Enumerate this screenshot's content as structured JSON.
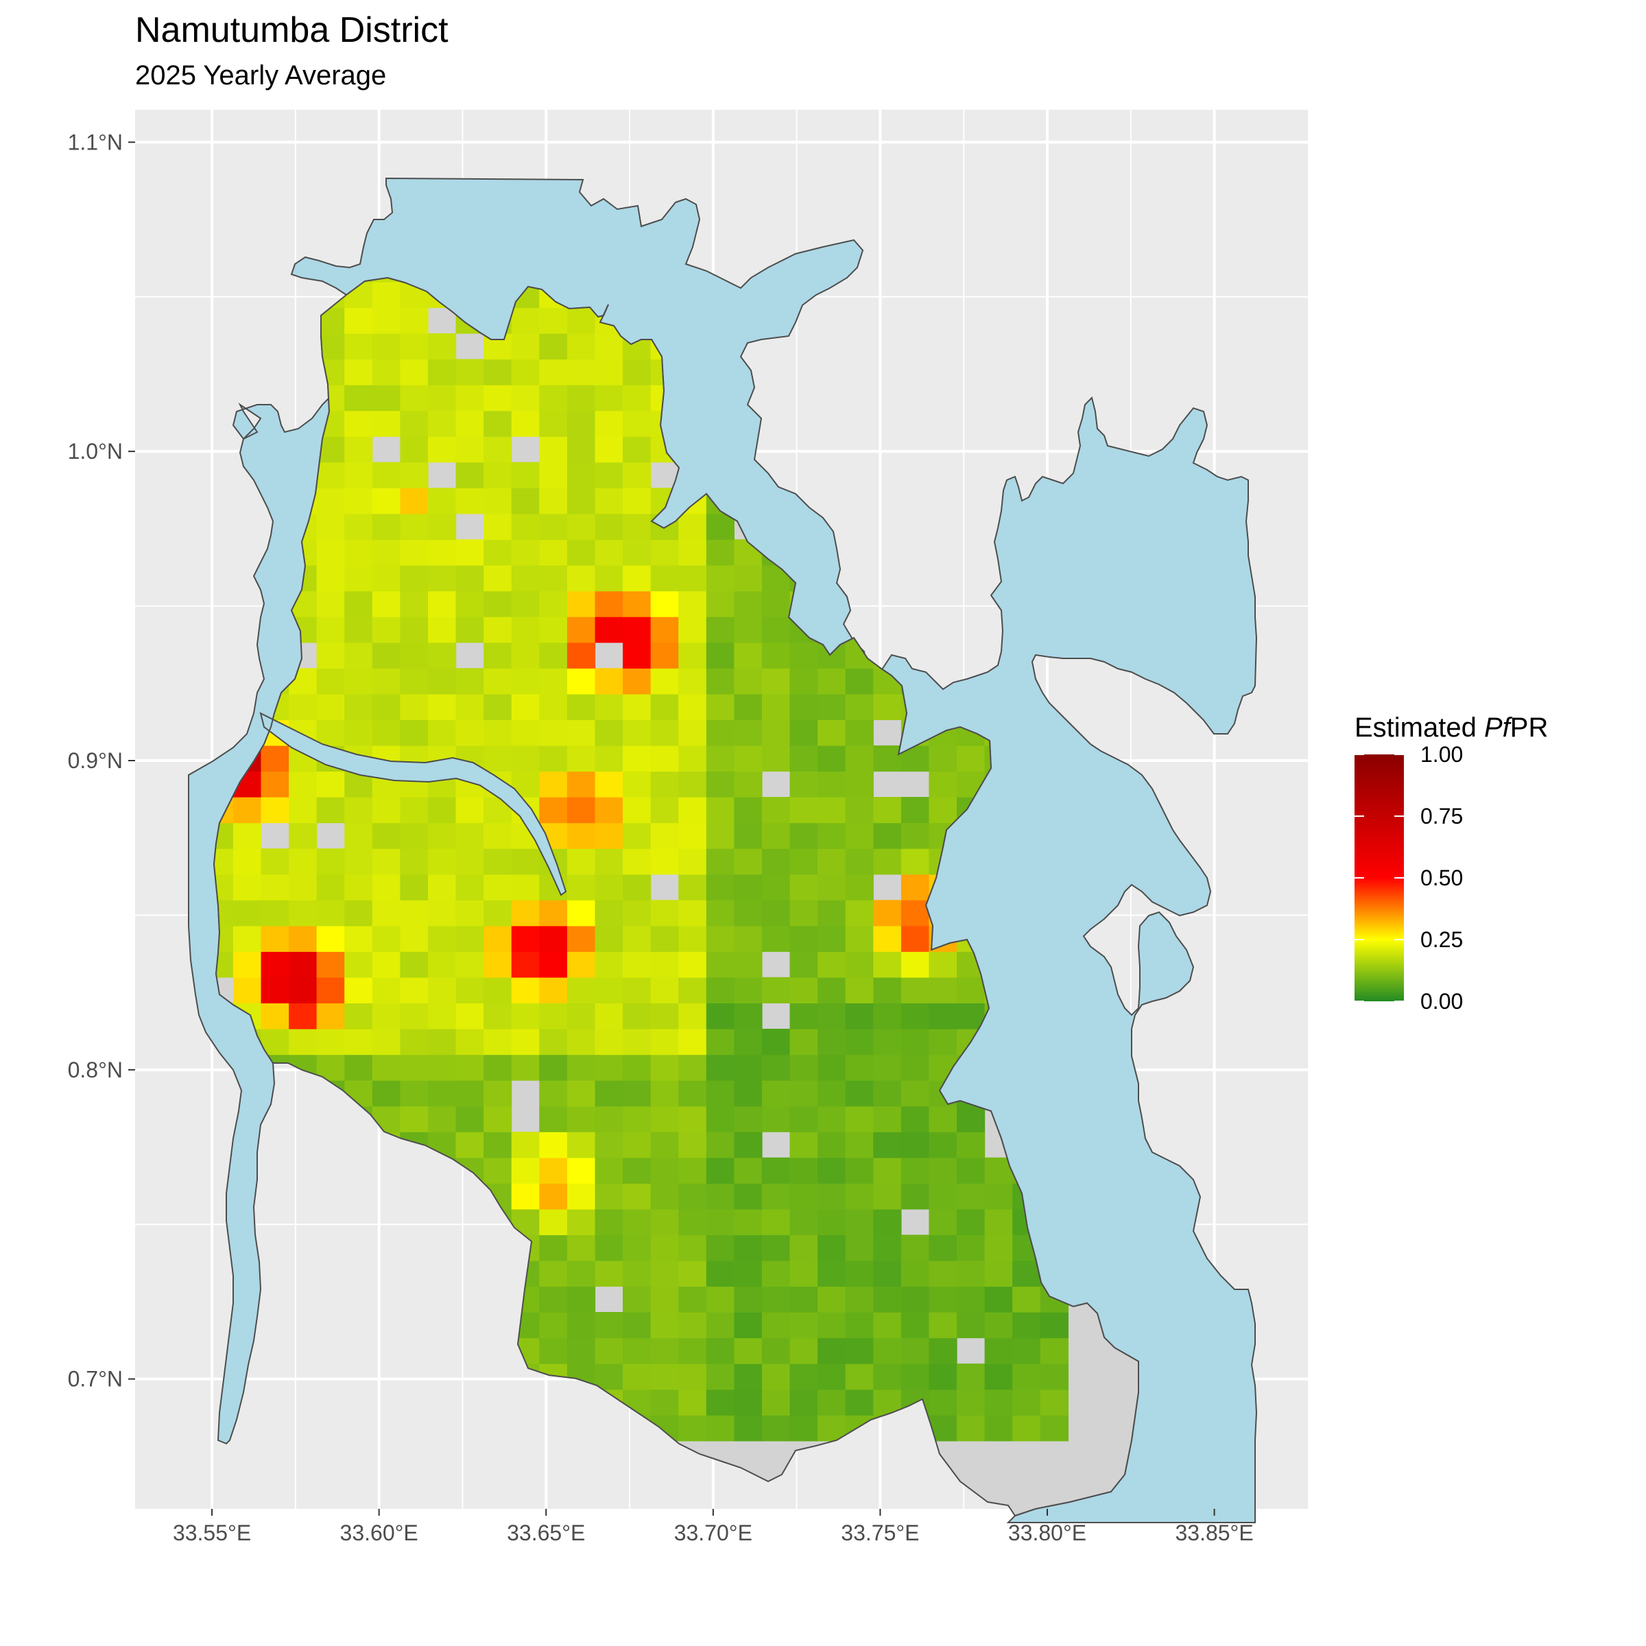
{
  "title": "Namutumba District",
  "subtitle": "2025 Yearly Average",
  "colors": {
    "panel_background": "#ebebeb",
    "gridline": "#ffffff",
    "water": "#add8e6",
    "district_fill": "#d3d3d3",
    "outline": "#4d4d4d"
  },
  "map": {
    "x_axis": {
      "range": [
        33.527,
        33.878
      ],
      "ticks": [
        {
          "value": 33.55,
          "label": "33.55°E"
        },
        {
          "value": 33.6,
          "label": "33.60°E"
        },
        {
          "value": 33.65,
          "label": "33.65°E"
        },
        {
          "value": 33.7,
          "label": "33.70°E"
        },
        {
          "value": 33.75,
          "label": "33.75°E"
        },
        {
          "value": 33.8,
          "label": "33.80°E"
        },
        {
          "value": 33.85,
          "label": "33.85°E"
        }
      ]
    },
    "y_axis": {
      "range": [
        0.658,
        1.1105
      ],
      "ticks": [
        {
          "value": 1.1,
          "label": "1.1°N"
        },
        {
          "value": 1.0,
          "label": "1.0°N"
        },
        {
          "value": 0.9,
          "label": "0.9°N"
        },
        {
          "value": 0.8,
          "label": "0.8°N"
        },
        {
          "value": 0.7,
          "label": "0.7°N"
        }
      ]
    },
    "grid": true,
    "cell_size_deg": 0.00833,
    "hotspots": [
      {
        "lon": 33.668,
        "lat": 0.935,
        "value": 0.6
      },
      {
        "lon": 33.655,
        "lat": 0.88,
        "value": 0.45
      },
      {
        "lon": 33.572,
        "lat": 0.825,
        "value": 0.62
      },
      {
        "lon": 33.758,
        "lat": 0.845,
        "value": 0.42
      },
      {
        "lon": 33.648,
        "lat": 0.76,
        "value": 0.32
      },
      {
        "lon": 33.605,
        "lat": 0.98,
        "value": 0.28
      },
      {
        "lon": 33.553,
        "lat": 0.894,
        "value": 0.68
      },
      {
        "lon": 33.645,
        "lat": 0.835,
        "value": 0.5
      }
    ]
  },
  "legend": {
    "title_prefix": "Estimated ",
    "title_italic": "Pf",
    "title_suffix": "PR",
    "position": "right",
    "stops": [
      {
        "value": 0.0,
        "color": "#228b22"
      },
      {
        "value": 0.25,
        "color": "#ffff00"
      },
      {
        "value": 0.5,
        "color": "#ff0000"
      },
      {
        "value": 1.0,
        "color": "#8b0000"
      }
    ],
    "labels": [
      {
        "value": 1.0,
        "label": "1.00"
      },
      {
        "value": 0.75,
        "label": "0.75"
      },
      {
        "value": 0.5,
        "label": "0.50"
      },
      {
        "value": 0.25,
        "label": "0.25"
      },
      {
        "value": 0.0,
        "label": "0.00"
      }
    ]
  }
}
